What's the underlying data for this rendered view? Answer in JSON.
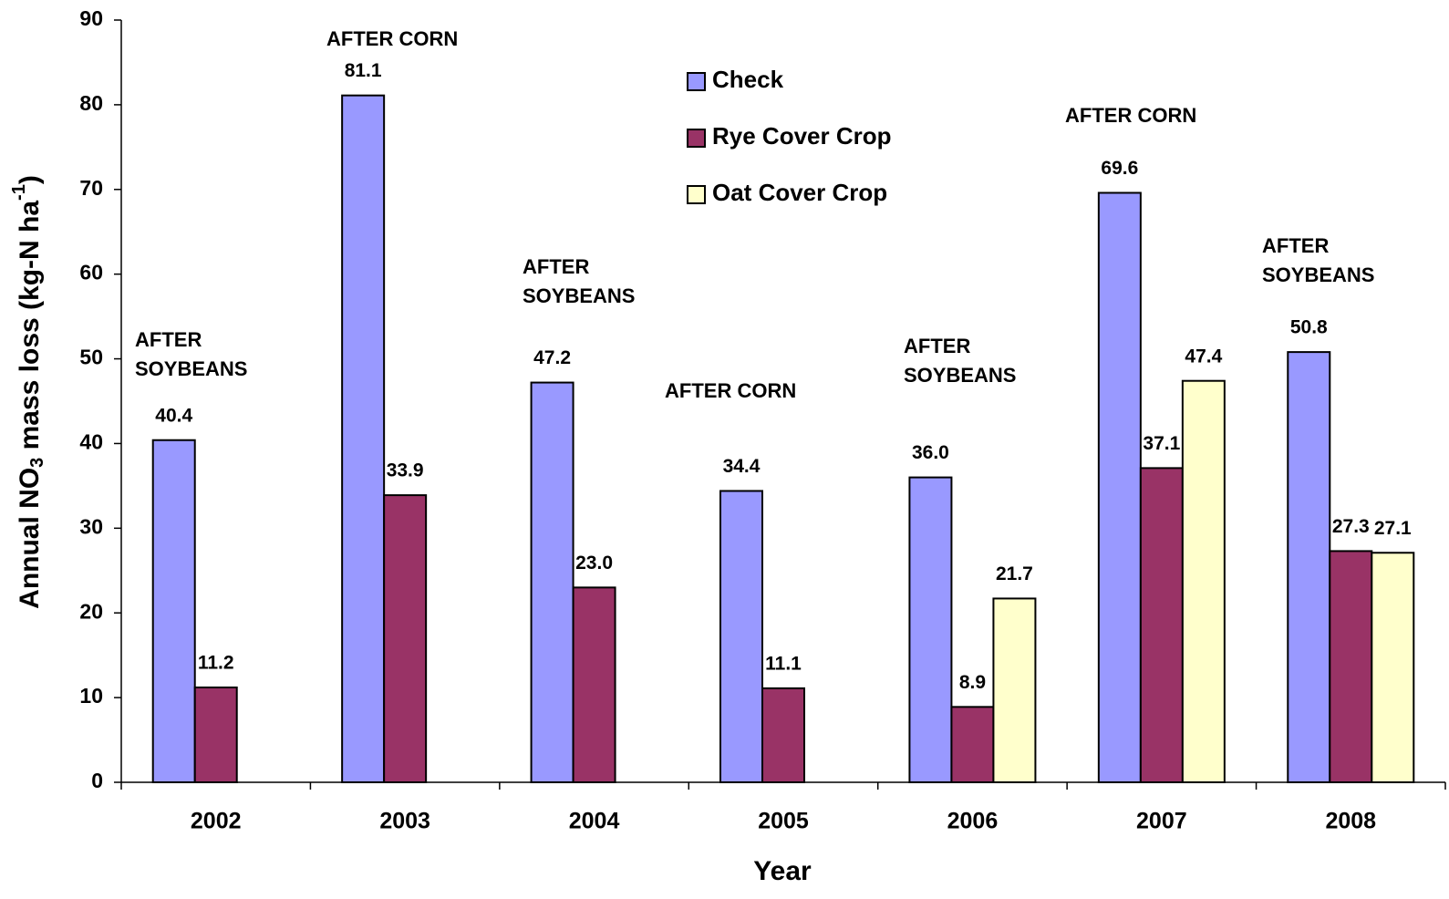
{
  "chart_data": {
    "type": "bar",
    "x_label": "Year",
    "y_label_parts": [
      "Annual NO",
      "3",
      " mass loss (kg-N ha",
      "-1",
      ")"
    ],
    "categories": [
      "2002",
      "2003",
      "2004",
      "2005",
      "2006",
      "2007",
      "2008"
    ],
    "series": [
      {
        "name": "Check",
        "color": "#9999ff",
        "values": [
          40.4,
          81.1,
          47.2,
          34.4,
          36.0,
          69.6,
          50.8
        ],
        "value_labels": [
          "40.4",
          "81.1",
          "47.2",
          "34.4",
          "36.0",
          "69.6",
          "50.8"
        ]
      },
      {
        "name": "Rye Cover Crop",
        "color": "#993366",
        "values": [
          11.2,
          33.9,
          23.0,
          11.1,
          8.9,
          37.1,
          27.3
        ],
        "value_labels": [
          "11.2",
          "33.9",
          "23.0",
          "11.1",
          "8.9",
          "37.1",
          "27.3"
        ]
      },
      {
        "name": "Oat Cover Crop",
        "color": "#ffffcc",
        "values": [
          null,
          null,
          null,
          null,
          21.7,
          47.4,
          27.1
        ],
        "value_labels": [
          null,
          null,
          null,
          null,
          "21.7",
          "47.4",
          "27.1"
        ]
      }
    ],
    "annotations": [
      {
        "category": "2002",
        "lines": [
          "AFTER",
          "SOYBEANS"
        ]
      },
      {
        "category": "2003",
        "lines": [
          "AFTER CORN"
        ]
      },
      {
        "category": "2004",
        "lines": [
          "AFTER",
          "SOYBEANS"
        ]
      },
      {
        "category": "2005",
        "lines": [
          "AFTER CORN"
        ]
      },
      {
        "category": "2006",
        "lines": [
          "AFTER",
          "SOYBEANS"
        ]
      },
      {
        "category": "2007",
        "lines": [
          "AFTER CORN"
        ]
      },
      {
        "category": "2008",
        "lines": [
          "AFTER",
          "SOYBEANS"
        ]
      }
    ],
    "ylim": [
      0,
      90
    ],
    "yticks": [
      0,
      10,
      20,
      30,
      40,
      50,
      60,
      70,
      80,
      90
    ],
    "grid": false,
    "legend": "top-center"
  }
}
